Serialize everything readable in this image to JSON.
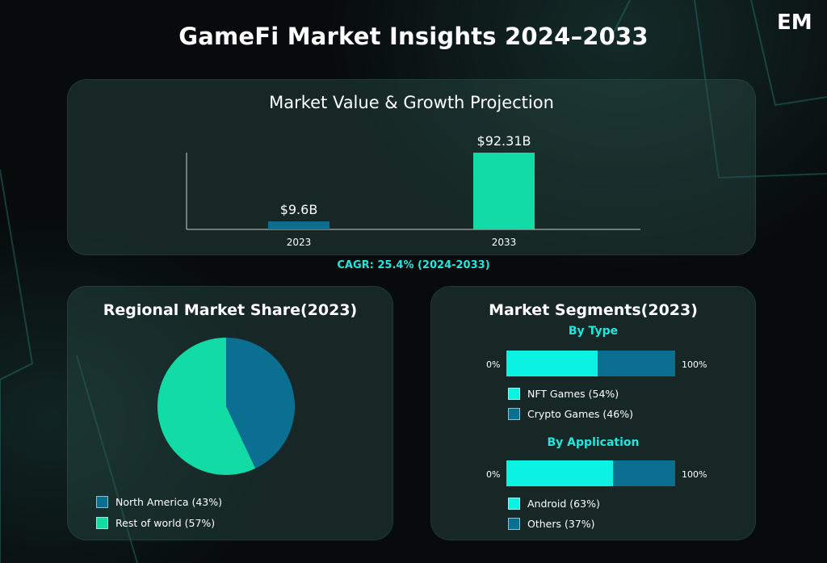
{
  "title": "GameFi Market Insights 2024–2033",
  "logo_text": "EM",
  "colors": {
    "dark_teal": "#0b6f92",
    "green": "#12dba6",
    "cyan": "#0cf2e2",
    "accent_text": "#21e6e0"
  },
  "growth": {
    "title": "Market Value & Growth Projection",
    "cagr": "CAGR: 25.4% (2024-2033)"
  },
  "region": {
    "title": "Regional Market Share(2023)",
    "legend": [
      {
        "label": "North America (43%)"
      },
      {
        "label": "Rest of world (57%)"
      }
    ]
  },
  "segments": {
    "title": "Market Segments(2023)",
    "by_type": {
      "title": "By Type",
      "start_label": "0%",
      "end_label": "100%",
      "legend": [
        {
          "label": "NFT Games (54%)"
        },
        {
          "label": "Crypto Games (46%)"
        }
      ]
    },
    "by_application": {
      "title": "By Application",
      "start_label": "0%",
      "end_label": "100%",
      "legend": [
        {
          "label": "Android (63%)"
        },
        {
          "label": "Others (37%)"
        }
      ]
    }
  },
  "chart_data": [
    {
      "type": "bar",
      "title": "Market Value & Growth Projection",
      "categories": [
        "2023",
        "2033"
      ],
      "values": [
        9.6,
        92.31
      ],
      "data_labels": [
        "$9.6B",
        "$92.31B"
      ],
      "colors": [
        "#0b6f92",
        "#12dba6"
      ],
      "ylim": [
        0,
        92.31
      ],
      "grid": false
    },
    {
      "type": "pie",
      "title": "Regional Market Share(2023)",
      "labels": [
        "North America",
        "Rest of world"
      ],
      "values": [
        43,
        57
      ],
      "colors": [
        "#0b6f92",
        "#12dba6"
      ],
      "legend": "bottom-left"
    },
    {
      "type": "bar",
      "title": "By Type",
      "orientation": "horizontal-stacked",
      "labels": [
        "NFT Games",
        "Crypto Games"
      ],
      "values": [
        54,
        46
      ],
      "colors": [
        "#0cf2e2",
        "#0b6f92"
      ]
    },
    {
      "type": "bar",
      "title": "By Application",
      "orientation": "horizontal-stacked",
      "labels": [
        "Android",
        "Others"
      ],
      "values": [
        63,
        37
      ],
      "colors": [
        "#0cf2e2",
        "#0b6f92"
      ]
    }
  ]
}
